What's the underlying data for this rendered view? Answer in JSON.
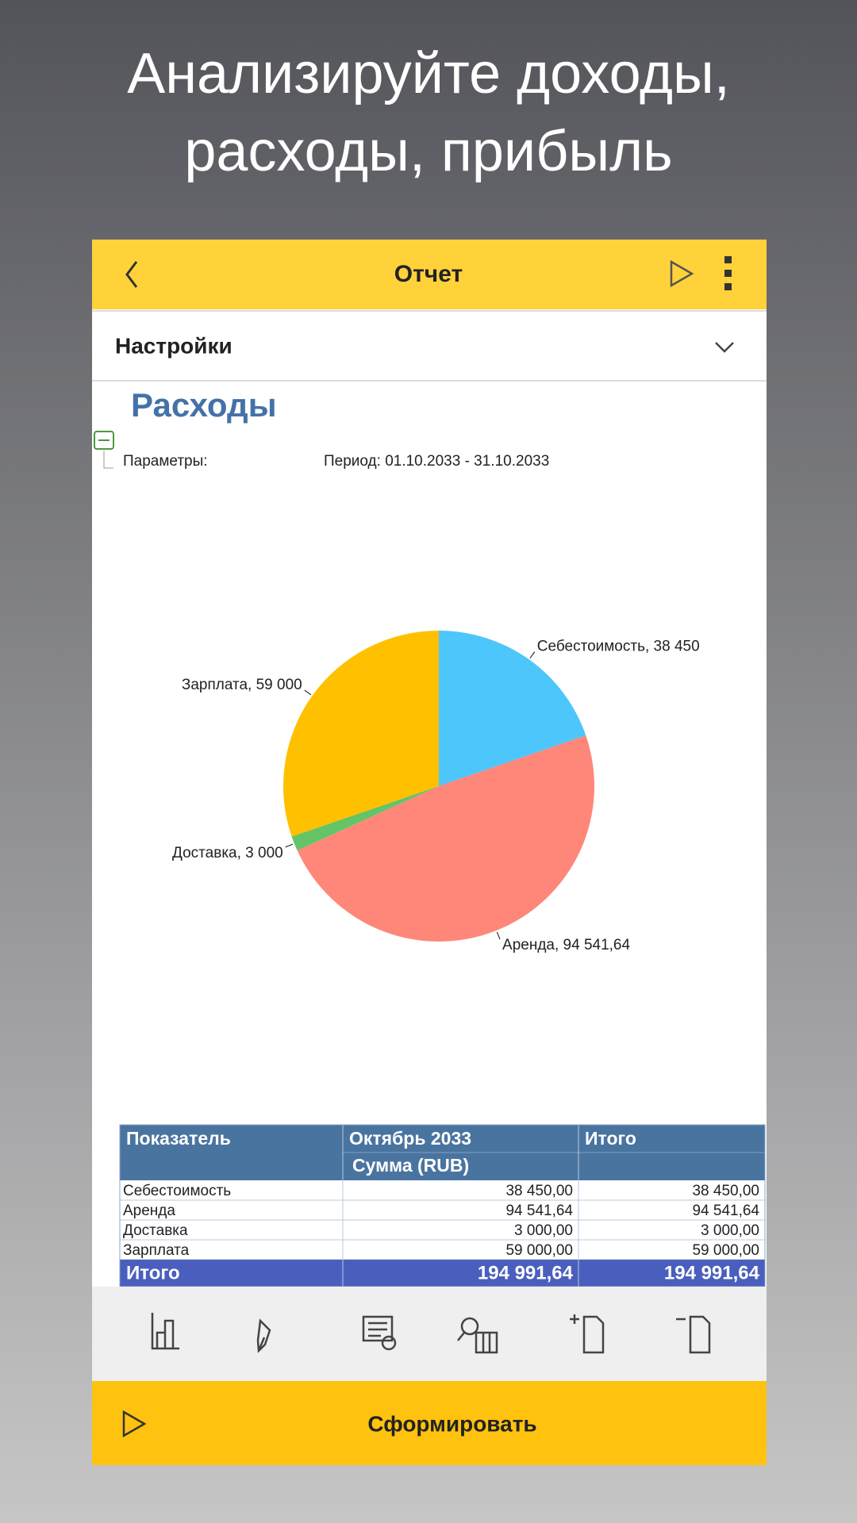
{
  "headline": [
    "Анализируйте доходы,",
    "расходы, прибыль"
  ],
  "header": {
    "title": "Отчет"
  },
  "settings": {
    "label": "Настройки"
  },
  "report": {
    "title": "Расходы",
    "params_label": "Параметры:",
    "period": "Период: 01.10.2033 - 31.10.2033"
  },
  "chart_data": {
    "type": "pie",
    "values": [
      38450,
      94541.64,
      3000,
      59000
    ],
    "value_labels": [
      "Себестоимость, 38 450",
      "Аренда, 94 541,64",
      "Доставка, 3 000",
      "Зарплата, 59 000"
    ],
    "colors": [
      "#4dc6fb",
      "#ff877a",
      "#64c466",
      "#ffc000"
    ]
  },
  "table": {
    "header": [
      "Показатель",
      "Октябрь 2033",
      "Итого"
    ],
    "subheader": "Сумма (RUB)",
    "rows": [
      [
        "Себестоимость",
        "38 450,00",
        "38 450,00"
      ],
      [
        "Аренда",
        "94 541,64",
        "94 541,64"
      ],
      [
        "Доставка",
        "3 000,00",
        "3 000,00"
      ],
      [
        "Зарплата",
        "59 000,00",
        "59 000,00"
      ]
    ],
    "total": [
      "Итого",
      "194 991,64",
      "194 991,64"
    ]
  },
  "footer": {
    "button": "Сформировать"
  }
}
